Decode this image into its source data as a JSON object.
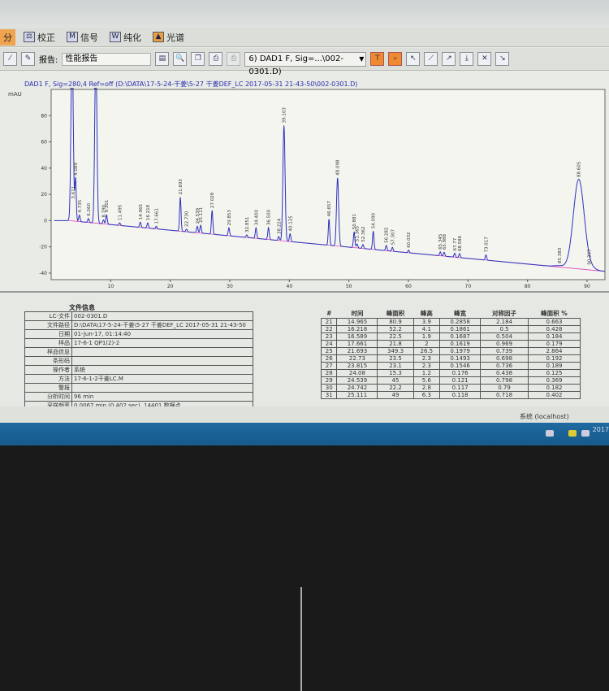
{
  "tabs": [
    {
      "label": "分",
      "active": true
    },
    {
      "label": "校正"
    },
    {
      "label": "信号"
    },
    {
      "label": "纯化"
    },
    {
      "label": "光谱"
    }
  ],
  "toolbar": {
    "report_label": "报告:",
    "report_value": "性能报告",
    "signal_select": "6) DAD1 F, Sig=...\\002-0301.D)"
  },
  "chart_title": "DAD1 F, Sig=280,4 Ref=off (D:\\DATA\\17-5-24-干姜\\5-27 干姜DEF_LC 2017-05-31 21-43-50\\002-0301.D)",
  "chart_data": {
    "type": "line",
    "ylabel": "mAU",
    "xticks": [
      10,
      20,
      30,
      40,
      50,
      60,
      70,
      80,
      90
    ],
    "yticks": [
      -40,
      -20,
      0,
      20,
      40,
      60,
      80
    ],
    "xlim": [
      0,
      93
    ],
    "ylim": [
      -45,
      100
    ],
    "baseline_color": "#e040c0",
    "trace_color": "#3030c0",
    "peaks": [
      {
        "rt": "3.497",
        "t": 3.5,
        "h": 130
      },
      {
        "rt": "3.611",
        "t": 3.7,
        "h": 15
      },
      {
        "rt": "4.089",
        "t": 4.09,
        "h": 33
      },
      {
        "rt": "4.735",
        "t": 4.74,
        "h": 5
      },
      {
        "rt": "6.260",
        "t": 6.26,
        "h": 3
      },
      {
        "rt": "7.497",
        "t": 7.5,
        "h": 130
      },
      {
        "rt": "8.790",
        "t": 8.79,
        "h": 3
      },
      {
        "rt": "9.301",
        "t": 9.3,
        "h": 7
      },
      {
        "rt": "11.495",
        "t": 11.5,
        "h": 2
      },
      {
        "rt": "14.965",
        "t": 14.97,
        "h": 4
      },
      {
        "rt": "16.218",
        "t": 16.22,
        "h": 4
      },
      {
        "rt": "17.661",
        "t": 17.66,
        "h": 2
      },
      {
        "rt": "21.693",
        "t": 21.69,
        "h": 26
      },
      {
        "rt": "22.730",
        "t": 22.73,
        "h": 2
      },
      {
        "rt": "24.539",
        "t": 24.54,
        "h": 5
      },
      {
        "rt": "25.111",
        "t": 25.11,
        "h": 6
      },
      {
        "rt": "27.028",
        "t": 27.03,
        "h": 18
      },
      {
        "rt": "29.853",
        "t": 29.85,
        "h": 6
      },
      {
        "rt": "32.851",
        "t": 32.85,
        "h": 2
      },
      {
        "rt": "34.400",
        "t": 34.4,
        "h": 8
      },
      {
        "rt": "36.500",
        "t": 36.5,
        "h": 9
      },
      {
        "rt": "38.224",
        "t": 38.22,
        "h": 3
      },
      {
        "rt": "39.103",
        "t": 39.1,
        "h": 88
      },
      {
        "rt": "40.125",
        "t": 40.13,
        "h": 6
      },
      {
        "rt": "46.657",
        "t": 46.66,
        "h": 20
      },
      {
        "rt": "48.098",
        "t": 48.1,
        "h": 52
      },
      {
        "rt": "50.881",
        "t": 50.88,
        "h": 12
      },
      {
        "rt": "51.365",
        "t": 51.37,
        "h": 3
      },
      {
        "rt": "52.362",
        "t": 52.36,
        "h": 3
      },
      {
        "rt": "54.090",
        "t": 54.09,
        "h": 14
      },
      {
        "rt": "56.282",
        "t": 56.28,
        "h": 4
      },
      {
        "rt": "57.307",
        "t": 57.31,
        "h": 3
      },
      {
        "rt": "60.032",
        "t": 60.03,
        "h": 2
      },
      {
        "rt": "65.345",
        "t": 65.35,
        "h": 3
      },
      {
        "rt": "65.988",
        "t": 65.99,
        "h": 3
      },
      {
        "rt": "67.77",
        "t": 67.77,
        "h": 3
      },
      {
        "rt": "68.586",
        "t": 68.59,
        "h": 3
      },
      {
        "rt": "73.017",
        "t": 73.02,
        "h": 4
      },
      {
        "rt": "85.383",
        "t": 85.38,
        "h": 1
      },
      {
        "rt": "88.605",
        "t": 88.6,
        "h": 68
      },
      {
        "rt": "90.307",
        "t": 90.31,
        "h": 2
      }
    ]
  },
  "file_info": {
    "title": "文件信息",
    "rows": [
      {
        "k": "LC-文件",
        "v": "002-0301.D"
      },
      {
        "k": "文件路径",
        "v": "D:\\DATA\\17-5-24-干姜\\5-27 干姜DEF_LC 2017-05-31 21-43-50"
      },
      {
        "k": "日期",
        "v": "01-Jun-17, 01:14:40"
      },
      {
        "k": "样品",
        "v": "17-6-1 QP1(2)-2"
      },
      {
        "k": "样品信息",
        "v": ""
      },
      {
        "k": "条形码",
        "v": ""
      },
      {
        "k": "操作者",
        "v": "系统"
      },
      {
        "k": "方法",
        "v": "17-6-1-2干姜LC.M"
      },
      {
        "k": "警报",
        "v": ""
      },
      {
        "k": "分析时间",
        "v": "96 min"
      },
      {
        "k": "采样频率",
        "v": "0.0067 min (0.402 sec), 14401 数据点"
      }
    ]
  },
  "peak_table": {
    "headers": [
      "#",
      "时间",
      "峰面积",
      "峰高",
      "峰宽",
      "对称因子",
      "峰面积 %"
    ],
    "rows": [
      [
        "21",
        "14.965",
        "80.9",
        "3.9",
        "0.2858",
        "2.184",
        "0.663"
      ],
      [
        "22",
        "16.218",
        "52.2",
        "4.1",
        "0.1861",
        "0.5",
        "0.428"
      ],
      [
        "23",
        "16.589",
        "22.5",
        "1.9",
        "0.1687",
        "0.504",
        "0.184"
      ],
      [
        "24",
        "17.661",
        "21.8",
        "2",
        "0.1619",
        "0.969",
        "0.179"
      ],
      [
        "25",
        "21.693",
        "349.3",
        "26.5",
        "0.1979",
        "0.739",
        "2.864"
      ],
      [
        "26",
        "22.73",
        "23.5",
        "2.3",
        "0.1493",
        "0.698",
        "0.192"
      ],
      [
        "27",
        "23.815",
        "23.1",
        "2.3",
        "0.1546",
        "0.736",
        "0.189"
      ],
      [
        "28",
        "24.08",
        "15.3",
        "1.2",
        "0.176",
        "0.438",
        "0.125"
      ],
      [
        "29",
        "24.539",
        "45",
        "5.6",
        "0.121",
        "0.798",
        "0.369"
      ],
      [
        "30",
        "24.742",
        "22.2",
        "2.8",
        "0.117",
        "0.79",
        "0.182"
      ],
      [
        "31",
        "25.111",
        "49",
        "6.3",
        "0.118",
        "0.718",
        "0.402"
      ]
    ]
  },
  "status": {
    "user": "系统 (localhost)"
  },
  "clock": "2017"
}
